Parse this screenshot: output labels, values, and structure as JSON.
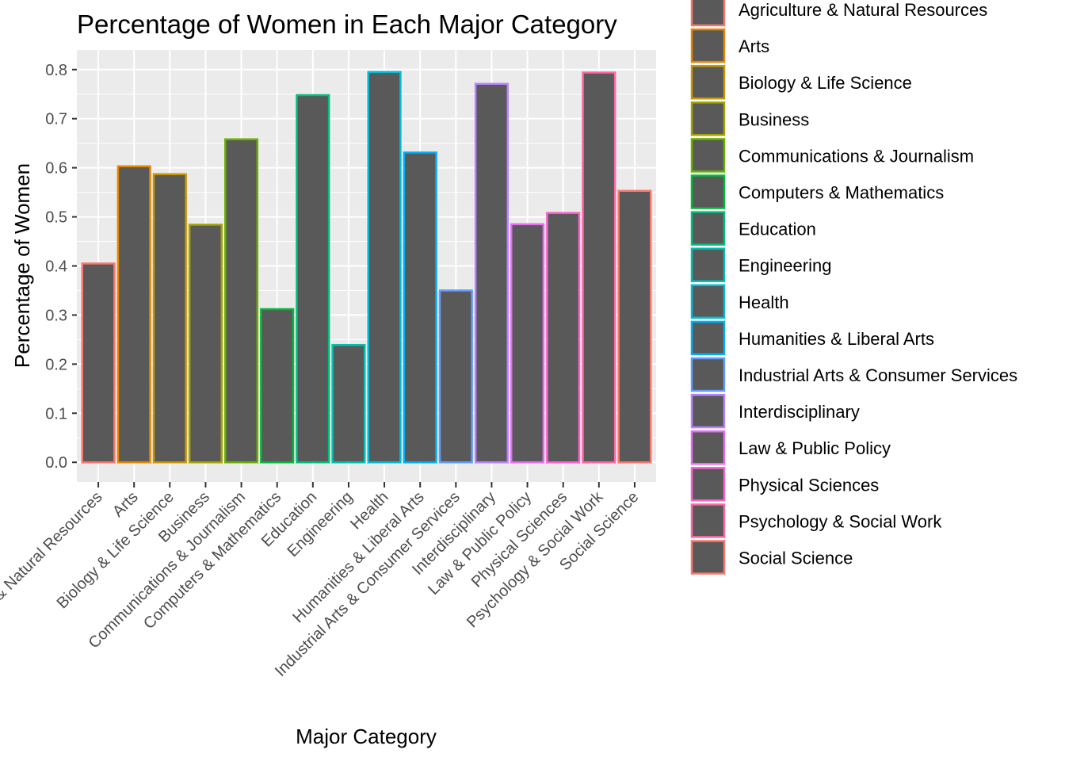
{
  "chart_data": {
    "type": "bar",
    "title": "Percentage of Women in Each Major Category",
    "xlabel": "Major Category",
    "ylabel": "Percentage of Women",
    "ylim": [
      -0.04,
      0.84
    ],
    "yticks": [
      0.0,
      0.1,
      0.2,
      0.3,
      0.4,
      0.5,
      0.6,
      0.7,
      0.8
    ],
    "ytick_labels": [
      "0.0",
      "0.1",
      "0.2",
      "0.3",
      "0.4",
      "0.5",
      "0.6",
      "0.7",
      "0.8"
    ],
    "grid": true,
    "legend_position": "right",
    "bar_fill": "#595959",
    "panel_background": "#ebebeb",
    "categories": [
      "Agriculture & Natural Resources",
      "Arts",
      "Biology & Life Science",
      "Business",
      "Communications & Journalism",
      "Computers & Mathematics",
      "Education",
      "Engineering",
      "Health",
      "Humanities & Liberal Arts",
      "Industrial Arts & Consumer Services",
      "Interdisciplinary",
      "Law & Public Policy",
      "Physical Sciences",
      "Psychology & Social Work",
      "Social Science"
    ],
    "values": [
      0.405,
      0.603,
      0.587,
      0.484,
      0.658,
      0.312,
      0.748,
      0.239,
      0.795,
      0.631,
      0.35,
      0.771,
      0.485,
      0.508,
      0.794,
      0.553
    ],
    "colors": [
      "#F8766D",
      "#E58700",
      "#C99800",
      "#A3A500",
      "#6BB100",
      "#00BA38",
      "#00BF7D",
      "#00C0AF",
      "#00BCD8",
      "#00B0F6",
      "#619CFF",
      "#B983FF",
      "#E76BF3",
      "#FD61D1",
      "#FF67A4",
      "#F8766D"
    ]
  }
}
